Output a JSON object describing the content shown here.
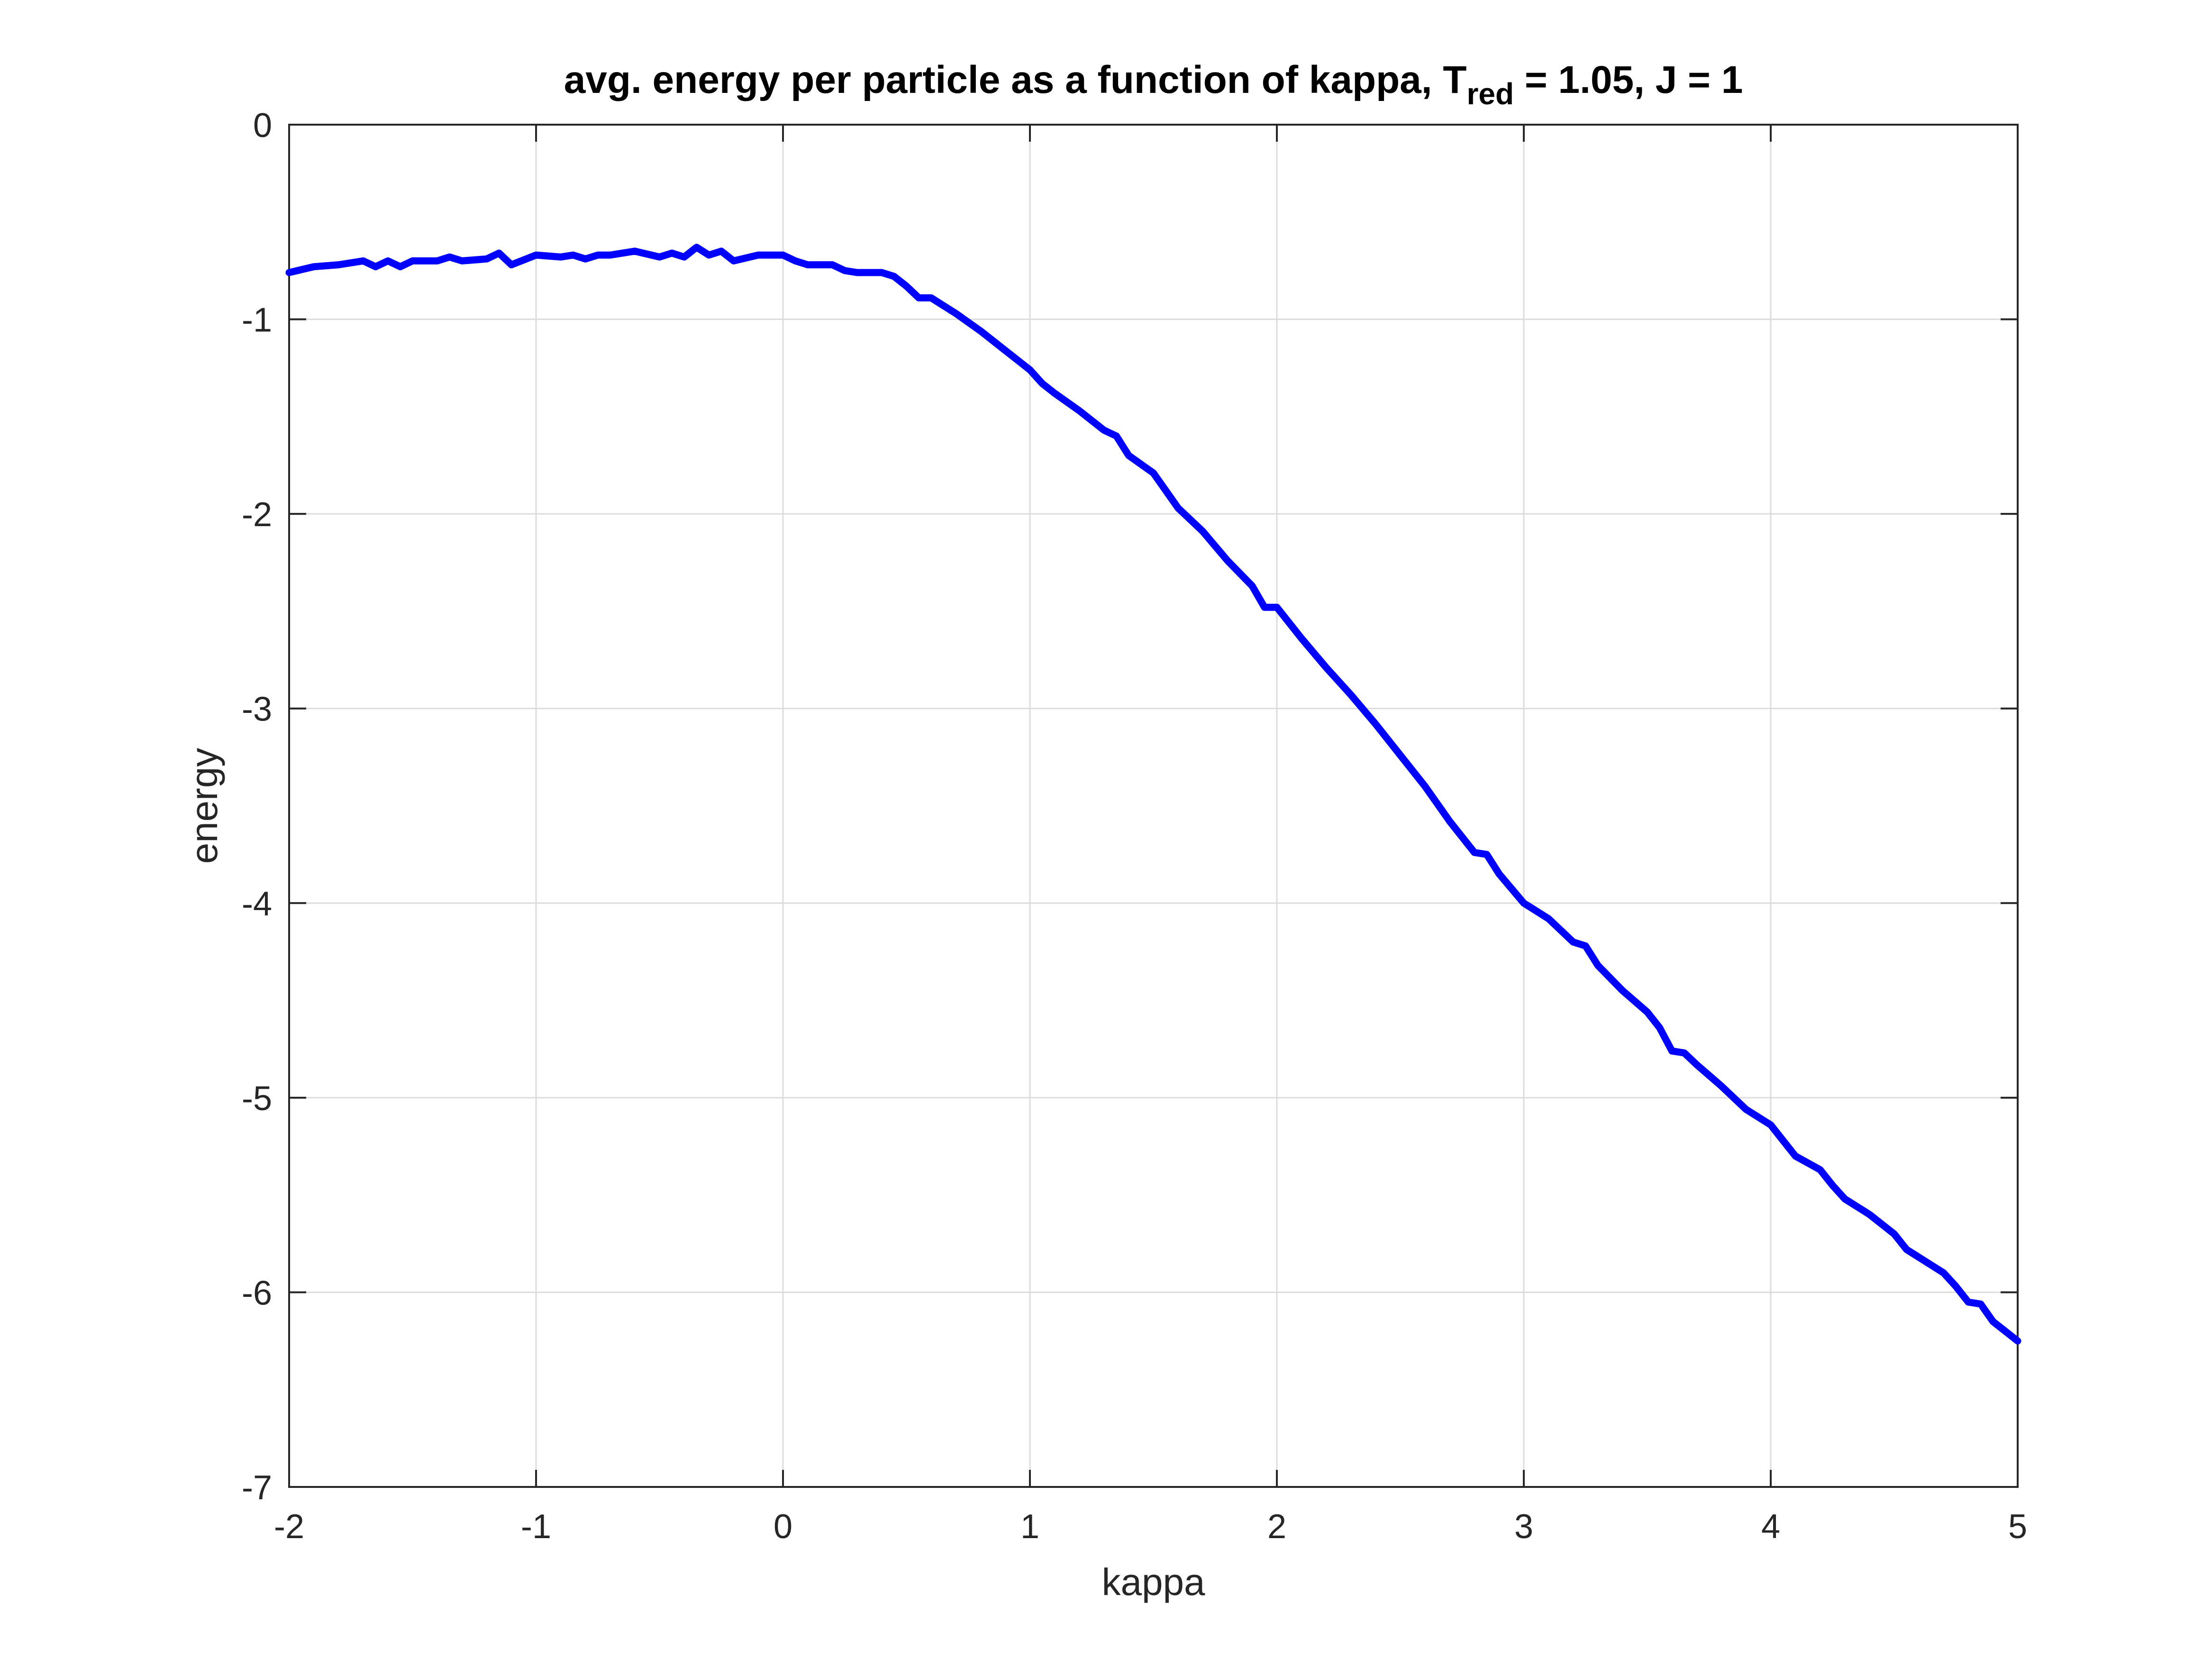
{
  "chart_data": {
    "type": "line",
    "title": {
      "main": "avg. energy per particle as a function of kappa, T",
      "subscript": "red",
      "suffix": " = 1.05, J = 1"
    },
    "xlabel": "kappa",
    "ylabel": "energy",
    "xlim": [
      -2,
      5
    ],
    "ylim": [
      -7,
      0
    ],
    "xticks": [
      -2,
      -1,
      0,
      1,
      2,
      3,
      4,
      5
    ],
    "yticks": [
      0,
      -1,
      -2,
      -3,
      -4,
      -5,
      -6,
      -7
    ],
    "xtick_labels": [
      "-2",
      "-1",
      "0",
      "1",
      "2",
      "3",
      "4",
      "5"
    ],
    "ytick_labels": [
      "0",
      "-1",
      "-2",
      "-3",
      "-4",
      "-5",
      "-6",
      "-7"
    ],
    "grid": true,
    "line_color": "#0000ff",
    "series": [
      {
        "x": [
          -2.0,
          -1.9,
          -1.8,
          -1.7,
          -1.65,
          -1.6,
          -1.55,
          -1.5,
          -1.4,
          -1.35,
          -1.3,
          -1.2,
          -1.15,
          -1.1,
          -1.0,
          -0.9,
          -0.85,
          -0.8,
          -0.75,
          -0.7,
          -0.6,
          -0.5,
          -0.45,
          -0.4,
          -0.35,
          -0.3,
          -0.25,
          -0.2,
          -0.1,
          0.0,
          0.05,
          0.1,
          0.2,
          0.25,
          0.3,
          0.4,
          0.45,
          0.5,
          0.55,
          0.6,
          0.7,
          0.8,
          0.9,
          1.0,
          1.05,
          1.1,
          1.2,
          1.3,
          1.35,
          1.4,
          1.5,
          1.6,
          1.7,
          1.8,
          1.9,
          1.95,
          2.0,
          2.1,
          2.2,
          2.3,
          2.4,
          2.5,
          2.6,
          2.7,
          2.8,
          2.85,
          2.9,
          3.0,
          3.1,
          3.2,
          3.25,
          3.3,
          3.4,
          3.5,
          3.55,
          3.6,
          3.65,
          3.7,
          3.8,
          3.9,
          4.0,
          4.05,
          4.1,
          4.2,
          4.25,
          4.3,
          4.4,
          4.5,
          4.55,
          4.6,
          4.7,
          4.75,
          4.8,
          4.85,
          4.9,
          5.0
        ],
        "y": [
          -0.76,
          -0.73,
          -0.72,
          -0.7,
          -0.73,
          -0.7,
          -0.73,
          -0.7,
          -0.7,
          -0.68,
          -0.7,
          -0.69,
          -0.66,
          -0.72,
          -0.67,
          -0.68,
          -0.67,
          -0.69,
          -0.67,
          -0.67,
          -0.65,
          -0.68,
          -0.66,
          -0.68,
          -0.63,
          -0.67,
          -0.65,
          -0.7,
          -0.67,
          -0.67,
          -0.7,
          -0.72,
          -0.72,
          -0.75,
          -0.76,
          -0.76,
          -0.78,
          -0.83,
          -0.89,
          -0.89,
          -0.97,
          -1.06,
          -1.16,
          -1.26,
          -1.33,
          -1.38,
          -1.47,
          -1.57,
          -1.6,
          -1.7,
          -1.79,
          -1.97,
          -2.09,
          -2.24,
          -2.37,
          -2.48,
          -2.48,
          -2.64,
          -2.79,
          -2.93,
          -3.08,
          -3.24,
          -3.4,
          -3.58,
          -3.74,
          -3.75,
          -3.85,
          -4.0,
          -4.08,
          -4.2,
          -4.22,
          -4.32,
          -4.45,
          -4.56,
          -4.64,
          -4.76,
          -4.77,
          -4.83,
          -4.94,
          -5.06,
          -5.14,
          -5.22,
          -5.3,
          -5.37,
          -5.45,
          -5.52,
          -5.6,
          -5.7,
          -5.78,
          -5.82,
          -5.9,
          -5.97,
          -6.05,
          -6.06,
          -6.15,
          -6.25
        ]
      }
    ]
  }
}
